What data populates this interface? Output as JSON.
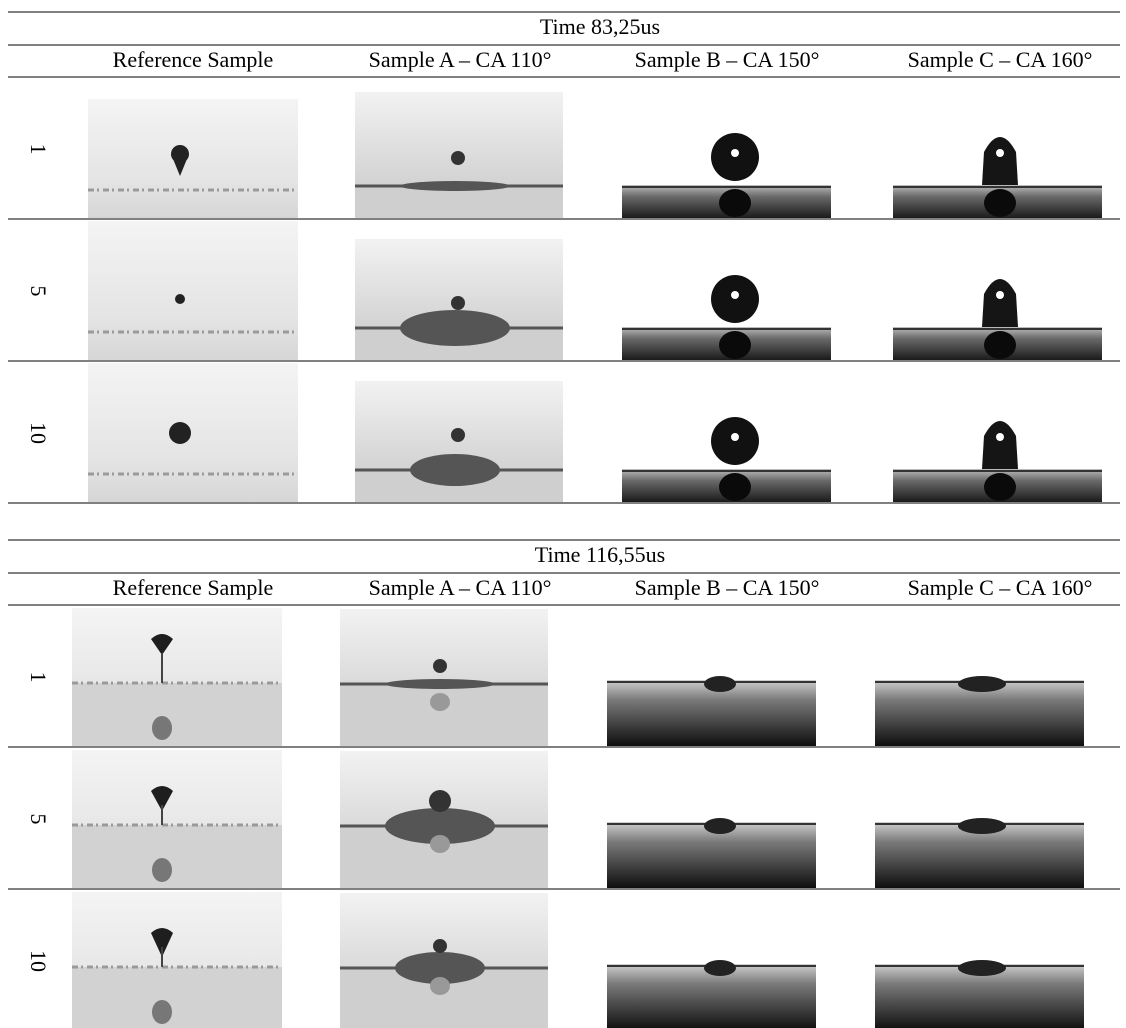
{
  "tables": [
    {
      "title": "Time 83,25us",
      "columns": [
        "Reference Sample",
        "Sample A – CA 110°",
        "Sample B – CA 150°",
        "Sample C – CA 160°"
      ],
      "rows": [
        "1",
        "5",
        "10"
      ]
    },
    {
      "title": "Time 116,55us",
      "columns": [
        "Reference Sample",
        "Sample A – CA 110°",
        "Sample B – CA 150°",
        "Sample C – CA 160°"
      ],
      "rows": [
        "1",
        "5",
        "10"
      ]
    }
  ]
}
